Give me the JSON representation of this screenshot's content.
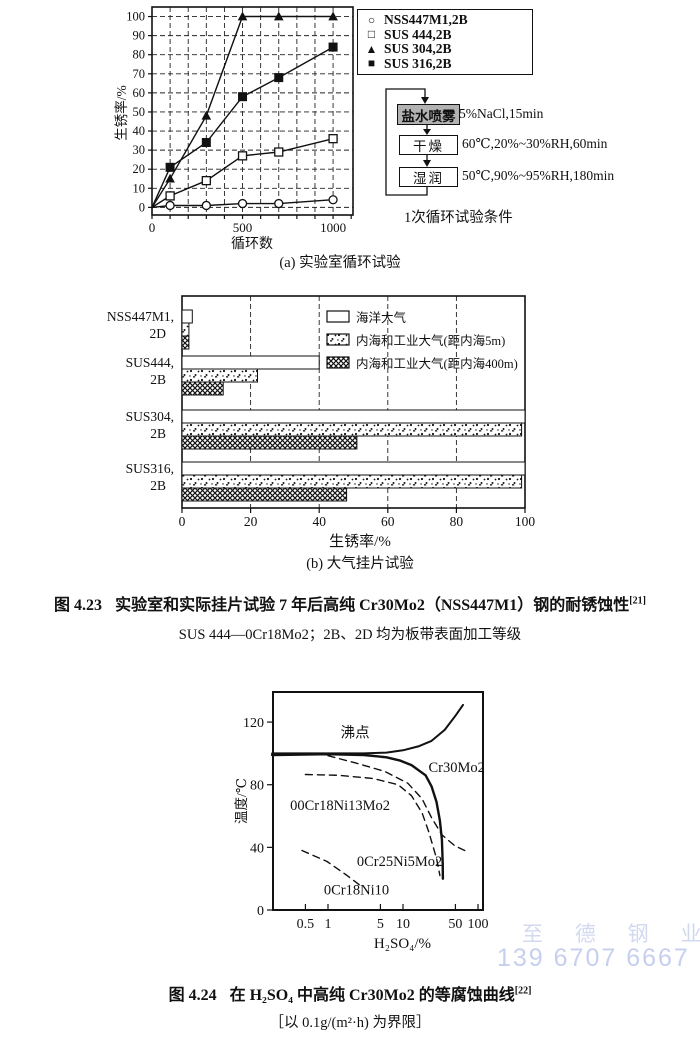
{
  "watermark": {
    "line1": "至 德 钢 业",
    "line2": "139 6707 6667",
    "color1": "#d2d8f0",
    "color2": "#c6cfee"
  },
  "flow": {
    "steps": [
      {
        "label": "盐水喷雾",
        "condition": "5%NaCl,15min",
        "highlighted": true
      },
      {
        "label": "干燥",
        "condition": "60℃,20%~30%RH,60min",
        "highlighted": false
      },
      {
        "label": "湿润",
        "condition": "50℃,90%~95%RH,180min",
        "highlighted": false
      }
    ],
    "caption": "1次循环试验条件"
  },
  "fig423_caption": {
    "label": "图 4.23",
    "text": "实验室和实际挂片试验 7 年后高纯 Cr30Mo2（NSS447M1）钢的耐锈蚀性",
    "ref": "[21]",
    "note": "SUS 444—0Cr18Mo2；2B、2D 均为板带表面加工等级"
  },
  "fig424_caption": {
    "label": "图 4.24",
    "text": "在 H₂SO₄ 中高纯 Cr30Mo2 的等腐蚀曲线",
    "ref": "[22]",
    "note": "［以 0.1g/(m²·h) 为界限］"
  },
  "chart_data": [
    {
      "id": "lab-cycle-test",
      "type": "line",
      "title": "(a) 实验室循环试验",
      "xlabel": "循环数",
      "ylabel": "生锈率/%",
      "xlim": [
        0,
        1110
      ],
      "ylim": [
        -4,
        105
      ],
      "xticks": [
        0,
        500,
        1000
      ],
      "yticks": [
        0,
        10,
        20,
        30,
        40,
        50,
        60,
        70,
        80,
        90,
        100
      ],
      "grid": "dashed, x every 100, y every 10",
      "legend_position": "outside top-right",
      "series": [
        {
          "name": "NSS447M1,2B",
          "marker": "circle-open",
          "points": [
            [
              0,
              0
            ],
            [
              100,
              1
            ],
            [
              300,
              1
            ],
            [
              500,
              2
            ],
            [
              700,
              2
            ],
            [
              1000,
              4
            ]
          ]
        },
        {
          "name": "SUS 444,2B",
          "marker": "square-open",
          "points": [
            [
              0,
              0
            ],
            [
              100,
              6
            ],
            [
              300,
              14
            ],
            [
              500,
              27
            ],
            [
              700,
              29
            ],
            [
              1000,
              36
            ]
          ]
        },
        {
          "name": "SUS 304,2B",
          "marker": "triangle-filled",
          "points": [
            [
              0,
              0
            ],
            [
              100,
              15
            ],
            [
              300,
              48
            ],
            [
              500,
              100
            ],
            [
              700,
              100
            ],
            [
              1000,
              100
            ]
          ]
        },
        {
          "name": "SUS 316,2B",
          "marker": "square-filled",
          "points": [
            [
              0,
              0
            ],
            [
              100,
              21
            ],
            [
              300,
              34
            ],
            [
              500,
              58
            ],
            [
              700,
              68
            ],
            [
              1000,
              84
            ]
          ]
        }
      ]
    },
    {
      "id": "atmospheric-exposure-test",
      "type": "bar",
      "orientation": "horizontal",
      "title": "(b) 大气挂片试验",
      "xlabel": "生锈率/%",
      "xlim": [
        0,
        100
      ],
      "xticks": [
        0,
        20,
        40,
        60,
        80,
        100
      ],
      "categories": [
        "NSS447M1,2D",
        "SUS444,2B",
        "SUS304,2B",
        "SUS316,2B"
      ],
      "series": [
        {
          "name": "海洋大气",
          "pattern": "plain",
          "values": [
            3,
            40,
            100,
            100
          ]
        },
        {
          "name": "内海和工业大气(距内海5m)",
          "pattern": "speckle",
          "values": [
            2,
            22,
            99,
            99
          ]
        },
        {
          "name": "内海和工业大气(距内海400m)",
          "pattern": "crosshatch",
          "values": [
            2,
            12,
            51,
            48
          ]
        }
      ]
    },
    {
      "id": "iso-corrosion-curves",
      "type": "line",
      "xscale": "log",
      "xlabel": "H₂SO₄/%",
      "ylabel": "温度/℃",
      "xlim": [
        0.18,
        110
      ],
      "ylim": [
        0,
        140
      ],
      "xticks": [
        0.5,
        1,
        5,
        10,
        50,
        100
      ],
      "yticks": [
        0,
        40,
        80,
        120
      ],
      "series": [
        {
          "name": "沸点",
          "style": "solid",
          "thick": false,
          "points": [
            [
              0.18,
              100
            ],
            [
              1,
              100
            ],
            [
              3,
              100
            ],
            [
              6,
              100.5
            ],
            [
              10,
              102
            ],
            [
              16,
              104.5
            ],
            [
              24,
              108
            ],
            [
              36,
              115
            ],
            [
              50,
              124
            ],
            [
              63,
              131
            ]
          ]
        },
        {
          "name": "Cr30Mo2",
          "style": "solid",
          "thick": true,
          "points": [
            [
              0.18,
              99
            ],
            [
              1,
              99.5
            ],
            [
              3,
              99
            ],
            [
              6,
              97.5
            ],
            [
              9,
              95.5
            ],
            [
              13,
              92.5
            ],
            [
              20,
              86
            ],
            [
              24,
              79
            ],
            [
              28,
              69
            ],
            [
              31,
              57
            ],
            [
              33,
              45
            ],
            [
              33.8,
              30
            ],
            [
              34,
              20
            ]
          ]
        },
        {
          "name": "00Cr18Ni13Mo2",
          "style": "dashed",
          "thick": false,
          "points": [
            [
              0.5,
              86.5
            ],
            [
              1.4,
              86
            ],
            [
              4,
              84
            ],
            [
              8.6,
              80
            ],
            [
              13,
              73
            ],
            [
              18,
              62
            ],
            [
              22,
              50
            ],
            [
              28,
              33
            ],
            [
              31,
              22
            ]
          ]
        },
        {
          "name": "0Cr25Ni5Mo2",
          "style": "dashed",
          "thick": false,
          "points": [
            [
              1,
              98.5
            ],
            [
              2.3,
              94
            ],
            [
              5.7,
              88.5
            ],
            [
              11.6,
              81
            ],
            [
              18,
              71
            ],
            [
              24,
              59
            ],
            [
              33,
              48
            ],
            [
              49,
              41
            ],
            [
              74,
              37
            ]
          ]
        },
        {
          "name": "0Cr18Ni10",
          "style": "dashed",
          "thick": false,
          "points": [
            [
              0.45,
              38
            ],
            [
              0.97,
              31
            ],
            [
              1.8,
              22
            ],
            [
              2.8,
              15
            ]
          ]
        }
      ],
      "annotations": [
        {
          "text": "沸点",
          "x": 2.3,
          "y": 110
        },
        {
          "text": "Cr30Mo2",
          "x": 52,
          "y": 88
        },
        {
          "text": "00Cr18Ni13Mo2",
          "x": 1.45,
          "y": 64
        },
        {
          "text": "0Cr25Ni5Mo2",
          "x": 9,
          "y": 28
        },
        {
          "text": "0Cr18Ni10",
          "x": 2.4,
          "y": 10
        }
      ]
    }
  ]
}
